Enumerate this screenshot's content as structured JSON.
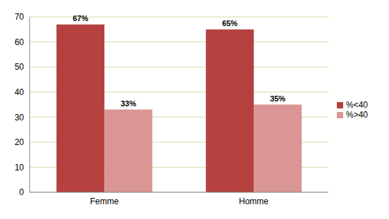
{
  "chart_data": {
    "type": "bar",
    "categories": [
      "Femme",
      "Homme"
    ],
    "series": [
      {
        "name": "%<40",
        "color": "#b5413f",
        "values": [
          67,
          65
        ],
        "value_labels": [
          "67%",
          "65%"
        ]
      },
      {
        "name": "%>40",
        "color": "#d99694",
        "values": [
          33,
          35
        ],
        "value_labels": [
          "33%",
          "35%"
        ]
      }
    ],
    "ylim": [
      0,
      70
    ],
    "yticks": [
      0,
      10,
      20,
      30,
      40,
      50,
      60,
      70
    ],
    "grid": true,
    "legend": "right",
    "data_labels": true
  }
}
